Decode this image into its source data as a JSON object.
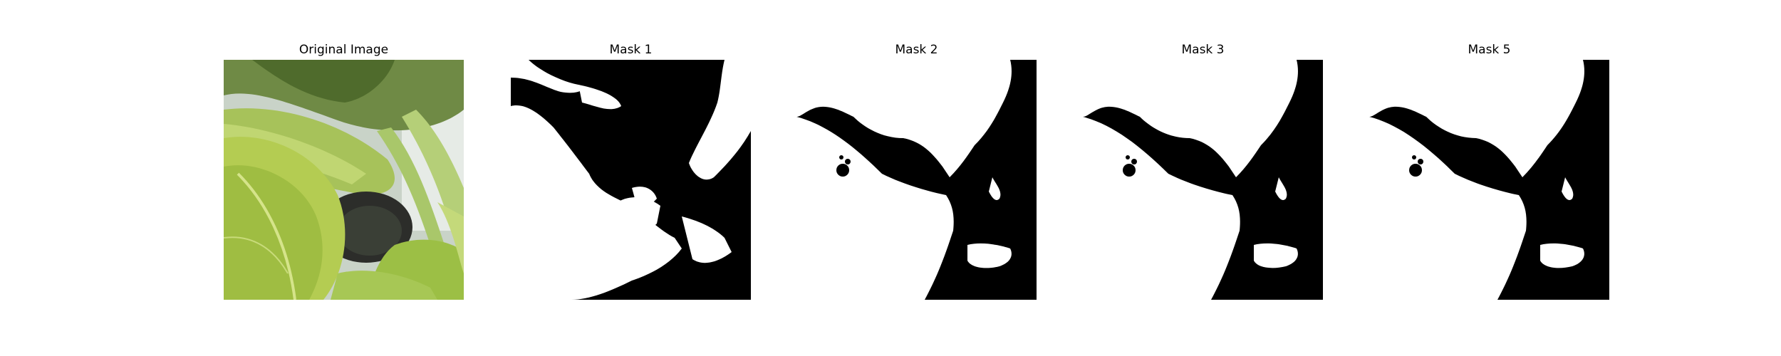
{
  "panels": [
    {
      "title": "Original Image",
      "kind": "photo",
      "icon": "bok-choy-photo"
    },
    {
      "title": "Mask 1",
      "kind": "mask"
    },
    {
      "title": "Mask 2",
      "kind": "mask"
    },
    {
      "title": "Mask 3",
      "kind": "mask"
    },
    {
      "title": "Mask 5",
      "kind": "mask"
    }
  ],
  "colors": {
    "mask_fg": "#ffffff",
    "mask_bg": "#000000"
  }
}
